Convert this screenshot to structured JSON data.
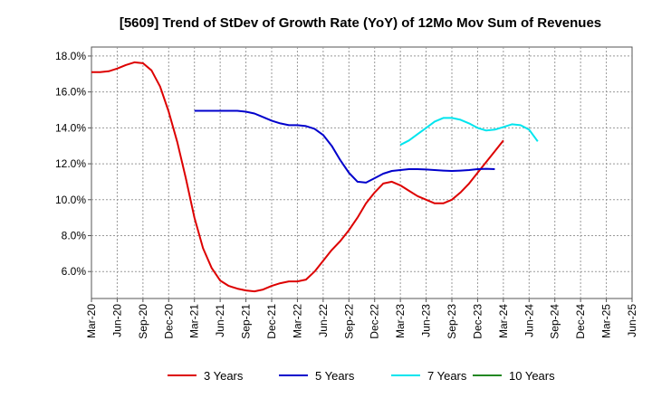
{
  "chart_data": {
    "type": "line",
    "title": "[5609]  Trend of StDev of Growth Rate (YoY) of 12Mo Mov Sum of Revenues",
    "xlabel": "",
    "ylabel": "",
    "x_ticks": [
      "Mar-20",
      "Jun-20",
      "Sep-20",
      "Dec-20",
      "Mar-21",
      "Jun-21",
      "Sep-21",
      "Dec-21",
      "Mar-22",
      "Jun-22",
      "Sep-22",
      "Dec-22",
      "Mar-23",
      "Jun-23",
      "Sep-23",
      "Dec-23",
      "Mar-24",
      "Jun-24",
      "Sep-24",
      "Dec-24",
      "Mar-25",
      "Jun-25"
    ],
    "y_ticks": [
      6.0,
      8.0,
      10.0,
      12.0,
      14.0,
      16.0,
      18.0
    ],
    "y_tick_labels": [
      "6.0%",
      "8.0%",
      "10.0%",
      "12.0%",
      "14.0%",
      "16.0%",
      "18.0%"
    ],
    "ylim": [
      4.5,
      18.5
    ],
    "grid": true,
    "series": [
      {
        "name": "3 Years",
        "color": "#dd0000",
        "start_index": 0,
        "values": [
          17.1,
          17.1,
          17.15,
          17.3,
          17.5,
          17.65,
          17.6,
          17.2,
          16.3,
          14.9,
          13.2,
          11.2,
          9.0,
          7.3,
          6.2,
          5.5,
          5.2,
          5.05,
          4.95,
          4.9,
          5.0,
          5.2,
          5.35,
          5.45,
          5.45,
          5.55,
          6.0,
          6.6,
          7.2,
          7.7,
          8.3,
          9.0,
          9.8,
          10.4,
          10.9,
          11.0,
          10.8,
          10.5,
          10.2,
          10.0,
          9.8,
          9.8,
          10.0,
          10.4,
          10.9,
          11.5,
          12.1,
          12.7,
          13.3
        ]
      },
      {
        "name": "5 Years",
        "color": "#0000cc",
        "start_index": 12,
        "values": [
          14.95,
          14.95,
          14.95,
          14.95,
          14.95,
          14.95,
          14.9,
          14.8,
          14.6,
          14.4,
          14.25,
          14.15,
          14.15,
          14.1,
          13.95,
          13.6,
          13.0,
          12.2,
          11.5,
          11.0,
          10.95,
          11.2,
          11.45,
          11.6,
          11.65,
          11.7,
          11.7,
          11.68,
          11.65,
          11.62,
          11.6,
          11.62,
          11.65,
          11.7,
          11.72,
          11.7
        ]
      },
      {
        "name": "7 Years",
        "color": "#00e5ee",
        "start_index": 36,
        "values": [
          13.05,
          13.3,
          13.65,
          14.0,
          14.35,
          14.55,
          14.55,
          14.45,
          14.25,
          14.0,
          13.85,
          13.9,
          14.05,
          14.2,
          14.15,
          13.9,
          13.25
        ]
      },
      {
        "name": "10 Years",
        "color": "#228822",
        "start_index": 0,
        "values": []
      }
    ],
    "legend": {
      "placement": "bottom"
    }
  }
}
